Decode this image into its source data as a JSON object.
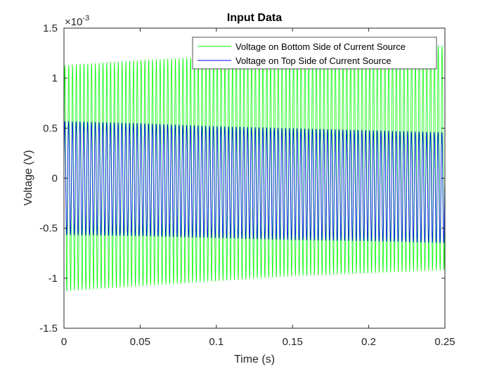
{
  "chart_data": {
    "type": "line",
    "title": "Input Data",
    "xlabel": "Time (s)",
    "ylabel": "Voltage (V)",
    "y_exponent_label": "×10",
    "y_exponent_power": "-3",
    "xlim": [
      0,
      0.25
    ],
    "ylim": [
      -1.5,
      1.5
    ],
    "x_ticks": [
      0,
      0.05,
      0.1,
      0.15,
      0.2,
      0.25
    ],
    "x_tick_labels": [
      "0",
      "0.05",
      "0.1",
      "0.15",
      "0.2",
      "0.25"
    ],
    "y_ticks": [
      -1.5,
      -1,
      -0.5,
      0,
      0.5,
      1,
      1.5
    ],
    "y_tick_labels": [
      "-1.5",
      "-1",
      "-0.5",
      "0",
      "0.5",
      "1",
      "1.5"
    ],
    "grid": false,
    "legend_position": "top-right",
    "oscillation_frequency_hz": 400,
    "series": [
      {
        "name": "Voltage on Bottom Side of Current Source",
        "color": "#00ff00",
        "envelope_time": [
          0,
          0.05,
          0.1,
          0.15,
          0.2,
          0.25
        ],
        "envelope_upper": [
          1.13,
          1.18,
          1.22,
          1.25,
          1.28,
          1.33
        ],
        "envelope_lower": [
          -1.13,
          -1.08,
          -1.03,
          -0.98,
          -0.95,
          -0.92
        ]
      },
      {
        "name": "Voltage on Top Side of Current Source",
        "color": "#0000ff",
        "envelope_time": [
          0,
          0.05,
          0.1,
          0.15,
          0.2,
          0.25
        ],
        "envelope_upper": [
          0.57,
          0.55,
          0.52,
          0.5,
          0.48,
          0.46
        ],
        "envelope_lower": [
          -0.57,
          -0.58,
          -0.6,
          -0.62,
          -0.63,
          -0.65
        ]
      }
    ]
  }
}
